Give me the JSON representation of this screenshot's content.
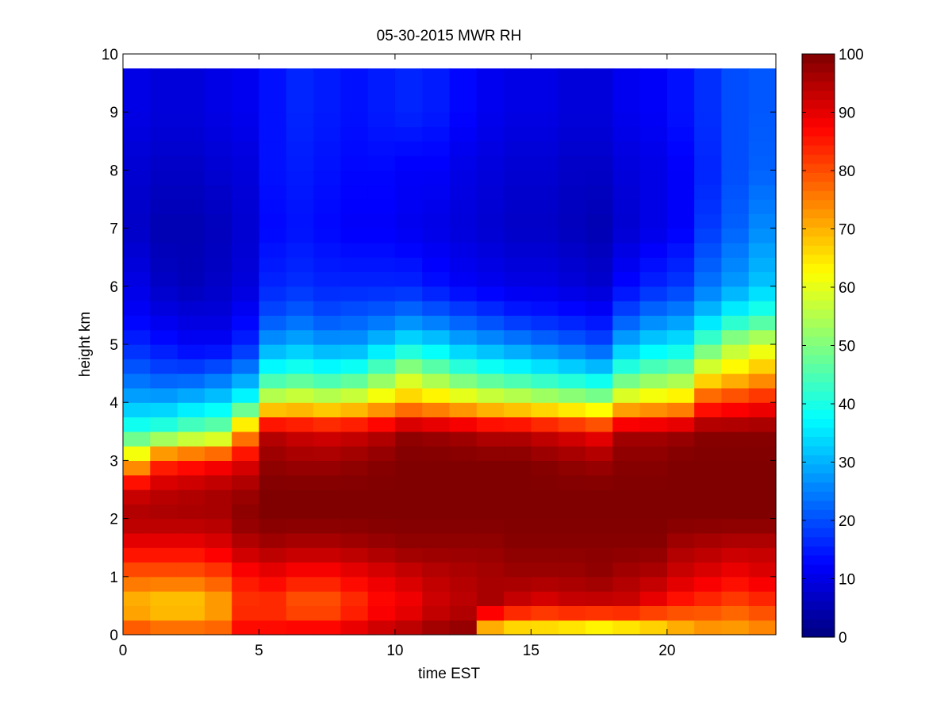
{
  "chart_data": {
    "type": "heatmap",
    "title": "05-30-2015 MWR RH",
    "xlabel": "time EST",
    "ylabel": "height km",
    "xlim": [
      0,
      24
    ],
    "ylim": [
      0,
      10
    ],
    "x_ticks": [
      0,
      5,
      10,
      15,
      20
    ],
    "y_ticks": [
      0,
      1,
      2,
      3,
      4,
      5,
      6,
      7,
      8,
      9,
      10
    ],
    "colorbar": {
      "min": 0,
      "max": 100,
      "ticks": [
        0,
        10,
        20,
        30,
        40,
        50,
        60,
        70,
        80,
        90,
        100
      ],
      "colormap": "jet"
    },
    "time_hours": [
      0.5,
      1.5,
      2.5,
      3.5,
      4.5,
      5.5,
      6.5,
      7.5,
      8.5,
      9.5,
      10.5,
      11.5,
      12.5,
      13.5,
      14.5,
      15.5,
      16.5,
      17.5,
      18.5,
      19.5,
      20.5,
      21.5,
      22.5,
      23.5
    ],
    "profile_heights_km": [
      0,
      0.5,
      1.0,
      1.5,
      2.0,
      2.5,
      3.0,
      3.5,
      4.0,
      4.5,
      5.0,
      5.5,
      6.0,
      7.0,
      8.0,
      9.0,
      9.75
    ],
    "rh_percent": [
      [
        82,
        68,
        78,
        88,
        96,
        92,
        68,
        42,
        30,
        22,
        16,
        12,
        10,
        7,
        8,
        10,
        10
      ],
      [
        80,
        66,
        78,
        88,
        96,
        94,
        82,
        44,
        30,
        20,
        14,
        10,
        7,
        5,
        7,
        9,
        9
      ],
      [
        80,
        66,
        78,
        88,
        96,
        95,
        84,
        48,
        32,
        20,
        12,
        9,
        6,
        5,
        7,
        9,
        9
      ],
      [
        80,
        70,
        80,
        90,
        96,
        96,
        86,
        50,
        34,
        22,
        12,
        9,
        7,
        6,
        8,
        10,
        10
      ],
      [
        88,
        82,
        86,
        94,
        99,
        97,
        90,
        72,
        40,
        26,
        16,
        12,
        9,
        8,
        9,
        11,
        11
      ],
      [
        88,
        82,
        88,
        96,
        100,
        100,
        98,
        94,
        60,
        40,
        28,
        20,
        16,
        13,
        14,
        14,
        14
      ],
      [
        90,
        78,
        86,
        95,
        100,
        100,
        97,
        92,
        62,
        42,
        30,
        22,
        17,
        14,
        15,
        16,
        16
      ],
      [
        90,
        78,
        86,
        95,
        100,
        100,
        97,
        91,
        60,
        40,
        28,
        20,
        16,
        13,
        14,
        15,
        15
      ],
      [
        92,
        82,
        88,
        96,
        100,
        100,
        98,
        92,
        62,
        42,
        28,
        21,
        16,
        12,
        13,
        14,
        14
      ],
      [
        94,
        86,
        90,
        97,
        100,
        100,
        99,
        94,
        66,
        48,
        32,
        22,
        16,
        12,
        13,
        15,
        15
      ],
      [
        96,
        88,
        92,
        98,
        100,
        100,
        100,
        98,
        70,
        55,
        36,
        24,
        16,
        11,
        12,
        16,
        16
      ],
      [
        98,
        92,
        94,
        98,
        100,
        100,
        100,
        97,
        68,
        50,
        34,
        22,
        14,
        10,
        12,
        15,
        15
      ],
      [
        99,
        94,
        95,
        98,
        100,
        100,
        100,
        96,
        65,
        45,
        30,
        20,
        12,
        9,
        10,
        13,
        13
      ],
      [
        62,
        96,
        96,
        98,
        100,
        100,
        100,
        94,
        62,
        42,
        28,
        18,
        11,
        8,
        9,
        11,
        11
      ],
      [
        58,
        92,
        97,
        99,
        100,
        100,
        100,
        94,
        60,
        40,
        26,
        16,
        10,
        7,
        8,
        10,
        10
      ],
      [
        58,
        90,
        97,
        99,
        100,
        100,
        99,
        92,
        58,
        38,
        24,
        15,
        10,
        7,
        8,
        10,
        10
      ],
      [
        56,
        92,
        97,
        99,
        100,
        100,
        98,
        90,
        56,
        36,
        22,
        14,
        9,
        6,
        7,
        9,
        9
      ],
      [
        54,
        92,
        98,
        99,
        100,
        100,
        97,
        88,
        54,
        34,
        20,
        13,
        8,
        5,
        7,
        9,
        9
      ],
      [
        56,
        92,
        96,
        99,
        100,
        100,
        99,
        96,
        64,
        44,
        30,
        20,
        13,
        8,
        9,
        11,
        11
      ],
      [
        60,
        88,
        95,
        99,
        100,
        100,
        99,
        96,
        66,
        48,
        34,
        24,
        16,
        10,
        10,
        12,
        12
      ],
      [
        66,
        84,
        92,
        96,
        100,
        100,
        100,
        97,
        68,
        50,
        36,
        26,
        18,
        12,
        12,
        14,
        14
      ],
      [
        70,
        82,
        90,
        95,
        100,
        100,
        100,
        99,
        82,
        62,
        46,
        32,
        24,
        18,
        16,
        17,
        17
      ],
      [
        70,
        80,
        88,
        94,
        100,
        100,
        100,
        99,
        84,
        66,
        54,
        38,
        28,
        22,
        20,
        20,
        20
      ],
      [
        72,
        82,
        90,
        94,
        100,
        100,
        100,
        99,
        86,
        70,
        58,
        42,
        32,
        26,
        22,
        21,
        21
      ]
    ]
  }
}
